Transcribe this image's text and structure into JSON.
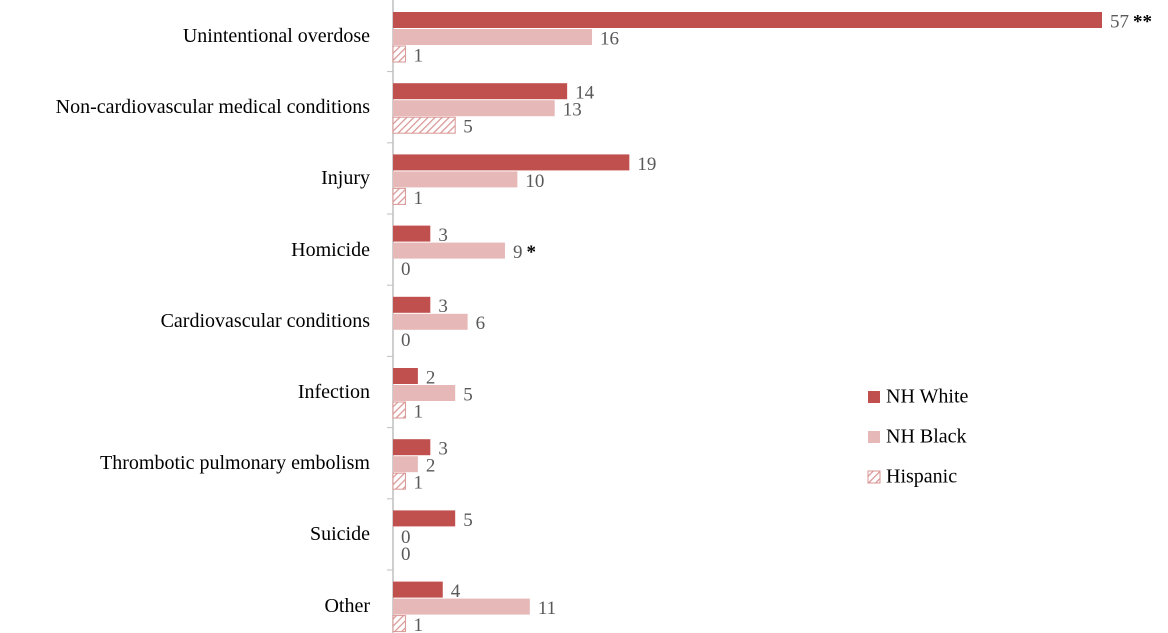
{
  "chart_data": {
    "type": "bar",
    "orientation": "horizontal",
    "categories": [
      "Unintentional overdose",
      "Non-cardiovascular medical conditions",
      "Injury",
      "Homicide",
      "Cardiovascular conditions",
      "Infection",
      "Thrombotic pulmonary embolism",
      "Suicide",
      "Other"
    ],
    "series": [
      {
        "name": "NH White",
        "color": "#c0504d",
        "values": [
          57,
          14,
          19,
          3,
          3,
          2,
          3,
          5,
          4
        ]
      },
      {
        "name": "NH Black",
        "color": "#e6b9b8",
        "values": [
          16,
          13,
          10,
          9,
          6,
          5,
          2,
          0,
          11
        ]
      },
      {
        "name": "Hispanic",
        "color": "#d99694",
        "pattern": "hatch",
        "values": [
          1,
          5,
          1,
          0,
          0,
          1,
          1,
          0,
          1
        ]
      }
    ],
    "annotations": [
      {
        "text": "**",
        "category": "Unintentional overdose",
        "series": "NH White"
      },
      {
        "text": "*",
        "category": "Homicide",
        "series": "NH Black"
      }
    ],
    "legend": "right"
  }
}
